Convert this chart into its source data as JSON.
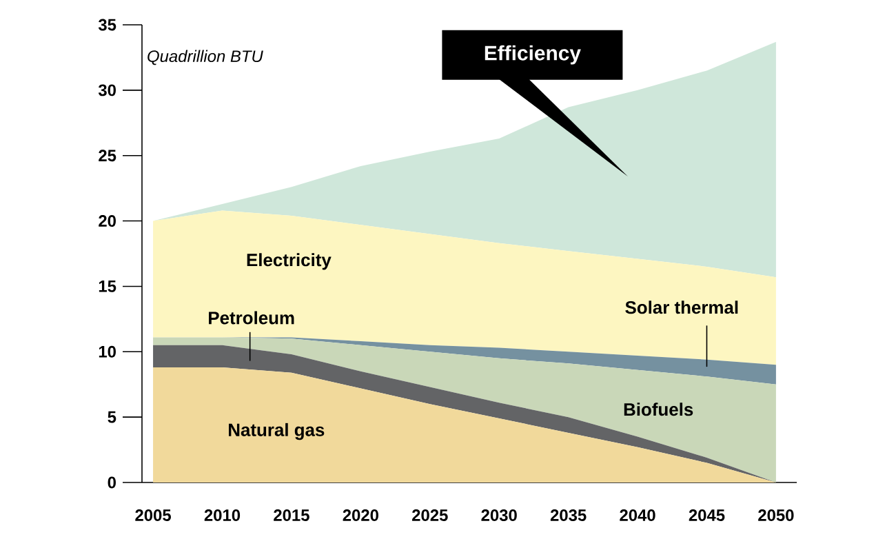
{
  "chart_data": {
    "type": "area",
    "stacked": true,
    "ylabel": "Quadrillion BTU",
    "x": [
      2005,
      2010,
      2015,
      2020,
      2025,
      2030,
      2035,
      2040,
      2045,
      2050
    ],
    "xlim": [
      2004.2,
      2051.5
    ],
    "xticks": [
      2005,
      2010,
      2015,
      2020,
      2025,
      2030,
      2035,
      2040,
      2045,
      2050
    ],
    "ylim": [
      0,
      35
    ],
    "yticks": [
      0,
      5,
      10,
      15,
      20,
      25,
      30,
      35
    ],
    "series": [
      {
        "name": "Natural gas",
        "color": "#f1d99b",
        "values": [
          8.8,
          8.8,
          8.4,
          7.2,
          6.0,
          4.9,
          3.8,
          2.7,
          1.5,
          0
        ]
      },
      {
        "name": "Petroleum",
        "color": "#636466",
        "values": [
          1.7,
          1.7,
          1.4,
          1.3,
          1.3,
          1.2,
          1.2,
          0.8,
          0.4,
          0
        ]
      },
      {
        "name": "Biofuels",
        "color": "#c9d7b8",
        "values": [
          0.6,
          0.6,
          1.2,
          2.0,
          2.7,
          3.4,
          4.1,
          5.1,
          6.2,
          7.5
        ]
      },
      {
        "name": "Solar thermal",
        "color": "#7591a0",
        "values": [
          0,
          0,
          0.1,
          0.3,
          0.5,
          0.8,
          0.9,
          1.1,
          1.3,
          1.5
        ]
      },
      {
        "name": "Electricity",
        "color": "#fdf6c1",
        "values": [
          8.9,
          9.7,
          9.3,
          8.9,
          8.5,
          8.0,
          7.7,
          7.4,
          7.1,
          6.7
        ]
      },
      {
        "name": "Efficiency",
        "color": "#cfe7da",
        "values": [
          0,
          0.5,
          2.2,
          4.5,
          6.3,
          8.0,
          11.0,
          12.9,
          15.0,
          18.0
        ]
      }
    ]
  }
}
